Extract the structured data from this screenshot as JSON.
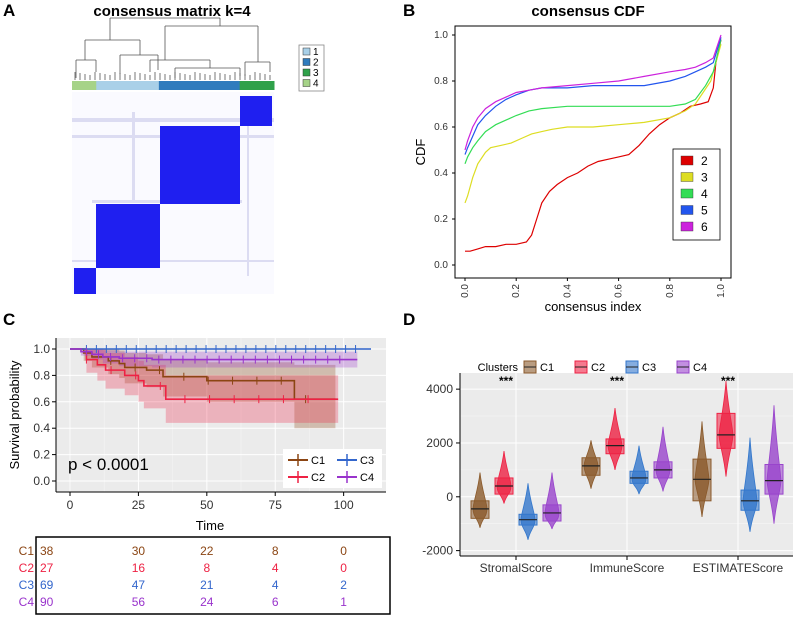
{
  "panels": {
    "A": "A",
    "B": "B",
    "C": "C",
    "D": "D"
  },
  "chart_data": [
    {
      "type": "heatmap",
      "title": "consensus matrix k=4",
      "legend": [
        "1",
        "2",
        "3",
        "4"
      ],
      "colors": {
        "1": "#a9d0e8",
        "2": "#2f7bbd",
        "3": "#2fa14a",
        "4": "#a6d388",
        "block": "#1f1ff0"
      },
      "column_groups": [
        "4",
        "1",
        "2",
        "3"
      ],
      "blocks": [
        {
          "cluster": "2",
          "order": 1
        },
        {
          "cluster": "1",
          "order": 2
        },
        {
          "cluster": "4",
          "order": 3
        }
      ]
    },
    {
      "type": "line",
      "title": "consensus CDF",
      "xlabel": "consensus index",
      "ylabel": "CDF",
      "xlim": [
        0,
        1
      ],
      "ylim": [
        0,
        1
      ],
      "xticks": [
        "0.0",
        "0.2",
        "0.4",
        "0.6",
        "0.8",
        "1.0"
      ],
      "yticks": [
        "0.0",
        "0.2",
        "0.4",
        "0.6",
        "0.8",
        "1.0"
      ],
      "series": [
        {
          "name": "2",
          "color": "#dd0000",
          "x": [
            0,
            0.02,
            0.05,
            0.08,
            0.12,
            0.16,
            0.2,
            0.24,
            0.26,
            0.28,
            0.3,
            0.33,
            0.36,
            0.4,
            0.44,
            0.48,
            0.52,
            0.56,
            0.6,
            0.64,
            0.68,
            0.72,
            0.76,
            0.8,
            0.84,
            0.88,
            0.92,
            0.95,
            0.97,
            0.98,
            1.0
          ],
          "y": [
            0.06,
            0.06,
            0.07,
            0.08,
            0.08,
            0.09,
            0.09,
            0.1,
            0.13,
            0.2,
            0.27,
            0.32,
            0.35,
            0.38,
            0.4,
            0.43,
            0.45,
            0.46,
            0.47,
            0.48,
            0.52,
            0.57,
            0.61,
            0.64,
            0.66,
            0.69,
            0.7,
            0.71,
            0.77,
            0.88,
            0.98
          ]
        },
        {
          "name": "3",
          "color": "#dddd22",
          "x": [
            0,
            0.01,
            0.03,
            0.05,
            0.08,
            0.1,
            0.14,
            0.18,
            0.22,
            0.26,
            0.3,
            0.34,
            0.4,
            0.5,
            0.6,
            0.7,
            0.8,
            0.86,
            0.9,
            0.93,
            0.96,
            0.98,
            1.0
          ],
          "y": [
            0.27,
            0.3,
            0.38,
            0.44,
            0.49,
            0.51,
            0.52,
            0.53,
            0.55,
            0.57,
            0.58,
            0.59,
            0.6,
            0.6,
            0.61,
            0.62,
            0.64,
            0.67,
            0.7,
            0.75,
            0.8,
            0.88,
            0.96
          ]
        },
        {
          "name": "4",
          "color": "#33dd55",
          "x": [
            0,
            0.01,
            0.03,
            0.05,
            0.08,
            0.12,
            0.16,
            0.2,
            0.25,
            0.3,
            0.4,
            0.5,
            0.6,
            0.7,
            0.8,
            0.86,
            0.9,
            0.94,
            0.97,
            1.0
          ],
          "y": [
            0.44,
            0.47,
            0.51,
            0.54,
            0.58,
            0.61,
            0.63,
            0.65,
            0.67,
            0.68,
            0.69,
            0.69,
            0.69,
            0.69,
            0.69,
            0.7,
            0.72,
            0.78,
            0.84,
            0.98
          ]
        },
        {
          "name": "5",
          "color": "#2255ee",
          "x": [
            0,
            0.01,
            0.03,
            0.05,
            0.08,
            0.12,
            0.16,
            0.2,
            0.25,
            0.3,
            0.4,
            0.5,
            0.6,
            0.7,
            0.8,
            0.86,
            0.9,
            0.94,
            0.97,
            1.0
          ],
          "y": [
            0.48,
            0.51,
            0.56,
            0.61,
            0.65,
            0.69,
            0.72,
            0.74,
            0.76,
            0.77,
            0.77,
            0.78,
            0.78,
            0.78,
            0.8,
            0.82,
            0.84,
            0.86,
            0.88,
            0.99
          ]
        },
        {
          "name": "6",
          "color": "#cc22dd",
          "x": [
            0,
            0.01,
            0.03,
            0.05,
            0.08,
            0.12,
            0.16,
            0.2,
            0.25,
            0.3,
            0.4,
            0.5,
            0.6,
            0.7,
            0.8,
            0.86,
            0.9,
            0.94,
            0.97,
            1.0
          ],
          "y": [
            0.5,
            0.54,
            0.6,
            0.64,
            0.68,
            0.71,
            0.73,
            0.75,
            0.76,
            0.77,
            0.78,
            0.79,
            0.8,
            0.82,
            0.84,
            0.85,
            0.86,
            0.88,
            0.9,
            1.0
          ]
        }
      ]
    },
    {
      "type": "line",
      "subtype": "kaplan-meier",
      "xlabel": "Time",
      "ylabel": "Survival probability",
      "xlim": [
        0,
        112
      ],
      "ylim": [
        0,
        1.05
      ],
      "xticks": [
        "0",
        "25",
        "50",
        "75",
        "100"
      ],
      "yticks": [
        "0.0",
        "0.2",
        "0.4",
        "0.6",
        "0.8",
        "1.0"
      ],
      "annotation": "p < 0.0001",
      "legend": [
        "C1",
        "C2",
        "C3",
        "C4"
      ],
      "series": [
        {
          "name": "C1",
          "color": "#8b4513",
          "t": [
            0,
            5,
            8,
            14,
            18,
            20,
            28,
            34,
            50,
            82,
            97
          ],
          "s": [
            1,
            0.97,
            0.94,
            0.91,
            0.89,
            0.86,
            0.84,
            0.79,
            0.76,
            0.62,
            0.62
          ],
          "ci_lo": [
            1,
            0.91,
            0.86,
            0.81,
            0.78,
            0.74,
            0.71,
            0.64,
            0.6,
            0.4,
            0.4
          ],
          "ci_hi": [
            1,
            1,
            1,
            1,
            0.99,
            0.97,
            0.96,
            0.92,
            0.9,
            0.88,
            0.88
          ]
        },
        {
          "name": "C2",
          "color": "#ee2244",
          "t": [
            0,
            6,
            10,
            13,
            20,
            25,
            27,
            35,
            98
          ],
          "s": [
            1,
            0.92,
            0.88,
            0.84,
            0.8,
            0.76,
            0.72,
            0.62,
            0.62
          ],
          "ci_lo": [
            1,
            0.82,
            0.76,
            0.7,
            0.65,
            0.6,
            0.55,
            0.44,
            0.44
          ],
          "ci_hi": [
            1,
            1,
            1,
            0.97,
            0.94,
            0.91,
            0.88,
            0.8,
            0.8
          ]
        },
        {
          "name": "C3",
          "color": "#3366cc",
          "t": [
            0,
            110
          ],
          "s": [
            1,
            1
          ],
          "ci_lo": [
            1,
            1
          ],
          "ci_hi": [
            1,
            1
          ]
        },
        {
          "name": "C4",
          "color": "#9933cc",
          "t": [
            0,
            4,
            8,
            12,
            18,
            30,
            105
          ],
          "s": [
            1,
            0.98,
            0.96,
            0.94,
            0.93,
            0.92,
            0.92
          ],
          "ci_lo": [
            1,
            0.95,
            0.92,
            0.89,
            0.87,
            0.86,
            0.86
          ],
          "ci_hi": [
            1,
            1,
            1,
            0.99,
            0.98,
            0.98,
            0.98
          ]
        }
      ],
      "risk_table": {
        "times": [
          0,
          25,
          50,
          75,
          100
        ],
        "rows": [
          {
            "name": "C1",
            "counts": [
              "38",
              "30",
              "22",
              "8",
              "0"
            ]
          },
          {
            "name": "C2",
            "counts": [
              "27",
              "16",
              "8",
              "4",
              "0"
            ]
          },
          {
            "name": "C3",
            "counts": [
              "69",
              "47",
              "21",
              "4",
              "2"
            ]
          },
          {
            "name": "C4",
            "counts": [
              "90",
              "56",
              "24",
              "6",
              "1"
            ]
          }
        ]
      }
    },
    {
      "type": "box",
      "subtype": "violin-box",
      "legend_title": "Clusters",
      "legend": [
        "C1",
        "C2",
        "C3",
        "C4"
      ],
      "colors": {
        "C1": "#8b5a2b",
        "C2": "#ee2244",
        "C3": "#3377cc",
        "C4": "#9944cc"
      },
      "categories": [
        "StromalScore",
        "ImmuneScore",
        "ESTIMATEScore"
      ],
      "significance": [
        "***",
        "***",
        "***"
      ],
      "yticks": [
        "-2000",
        "0",
        "2000",
        "4000"
      ],
      "ylim": [
        -2200,
        4600
      ],
      "groups": [
        {
          "category": "StromalScore",
          "boxes": [
            {
              "name": "C1",
              "min": -1150,
              "q1": -800,
              "median": -450,
              "q3": -150,
              "max": 900
            },
            {
              "name": "C2",
              "min": -250,
              "q1": 100,
              "median": 400,
              "q3": 700,
              "max": 1700
            },
            {
              "name": "C3",
              "min": -1600,
              "q1": -1050,
              "median": -850,
              "q3": -650,
              "max": 500
            },
            {
              "name": "C4",
              "min": -1200,
              "q1": -900,
              "median": -600,
              "q3": -300,
              "max": 900
            }
          ]
        },
        {
          "category": "ImmuneScore",
          "boxes": [
            {
              "name": "C1",
              "min": 300,
              "q1": 800,
              "median": 1150,
              "q3": 1450,
              "max": 2100
            },
            {
              "name": "C2",
              "min": 1000,
              "q1": 1600,
              "median": 1900,
              "q3": 2150,
              "max": 3300
            },
            {
              "name": "C3",
              "min": 100,
              "q1": 500,
              "median": 700,
              "q3": 950,
              "max": 1900
            },
            {
              "name": "C4",
              "min": 200,
              "q1": 700,
              "median": 1000,
              "q3": 1300,
              "max": 2600
            }
          ]
        },
        {
          "category": "ESTIMATEScore",
          "boxes": [
            {
              "name": "C1",
              "min": -750,
              "q1": -150,
              "median": 650,
              "q3": 1400,
              "max": 2800
            },
            {
              "name": "C2",
              "min": 750,
              "q1": 1800,
              "median": 2300,
              "q3": 3100,
              "max": 4300
            },
            {
              "name": "C3",
              "min": -1300,
              "q1": -500,
              "median": -150,
              "q3": 250,
              "max": 2200
            },
            {
              "name": "C4",
              "min": -1000,
              "q1": 100,
              "median": 600,
              "q3": 1200,
              "max": 3400
            }
          ]
        }
      ]
    }
  ]
}
